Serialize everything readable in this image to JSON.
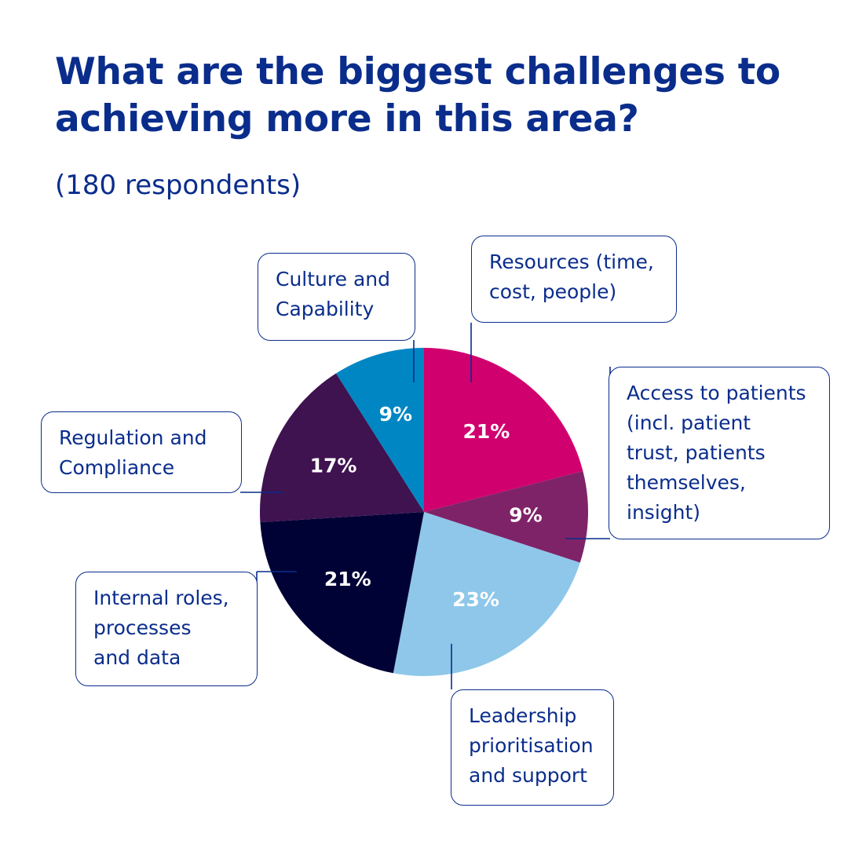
{
  "title": "What are the biggest challenges to achieving more in this area?",
  "subtitle": "(180 respondents)",
  "chart_data": {
    "type": "pie",
    "start": "12 o'clock",
    "direction": "clockwise",
    "slices": [
      {
        "label": "Resources (time,\ncost, people)",
        "value": 21,
        "value_label": "21%",
        "color": "#d0006f"
      },
      {
        "label": "Access to patients\n(incl. patient\ntrust, patients\nthemselves,\ninsight)",
        "value": 9,
        "value_label": "9%",
        "color": "#7f2369"
      },
      {
        "label": "Leadership\nprioritisation\nand support",
        "value": 23,
        "value_label": "23%",
        "color": "#8ec7e9"
      },
      {
        "label": "Internal roles,\nprocesses\nand data",
        "value": 21,
        "value_label": "21%",
        "color": "#000235"
      },
      {
        "label": "Regulation and\nCompliance",
        "value": 17,
        "value_label": "17%",
        "color": "#3f1250"
      },
      {
        "label": "Culture and\nCapability",
        "value": 9,
        "value_label": "9%",
        "color": "#0086c3"
      }
    ]
  }
}
